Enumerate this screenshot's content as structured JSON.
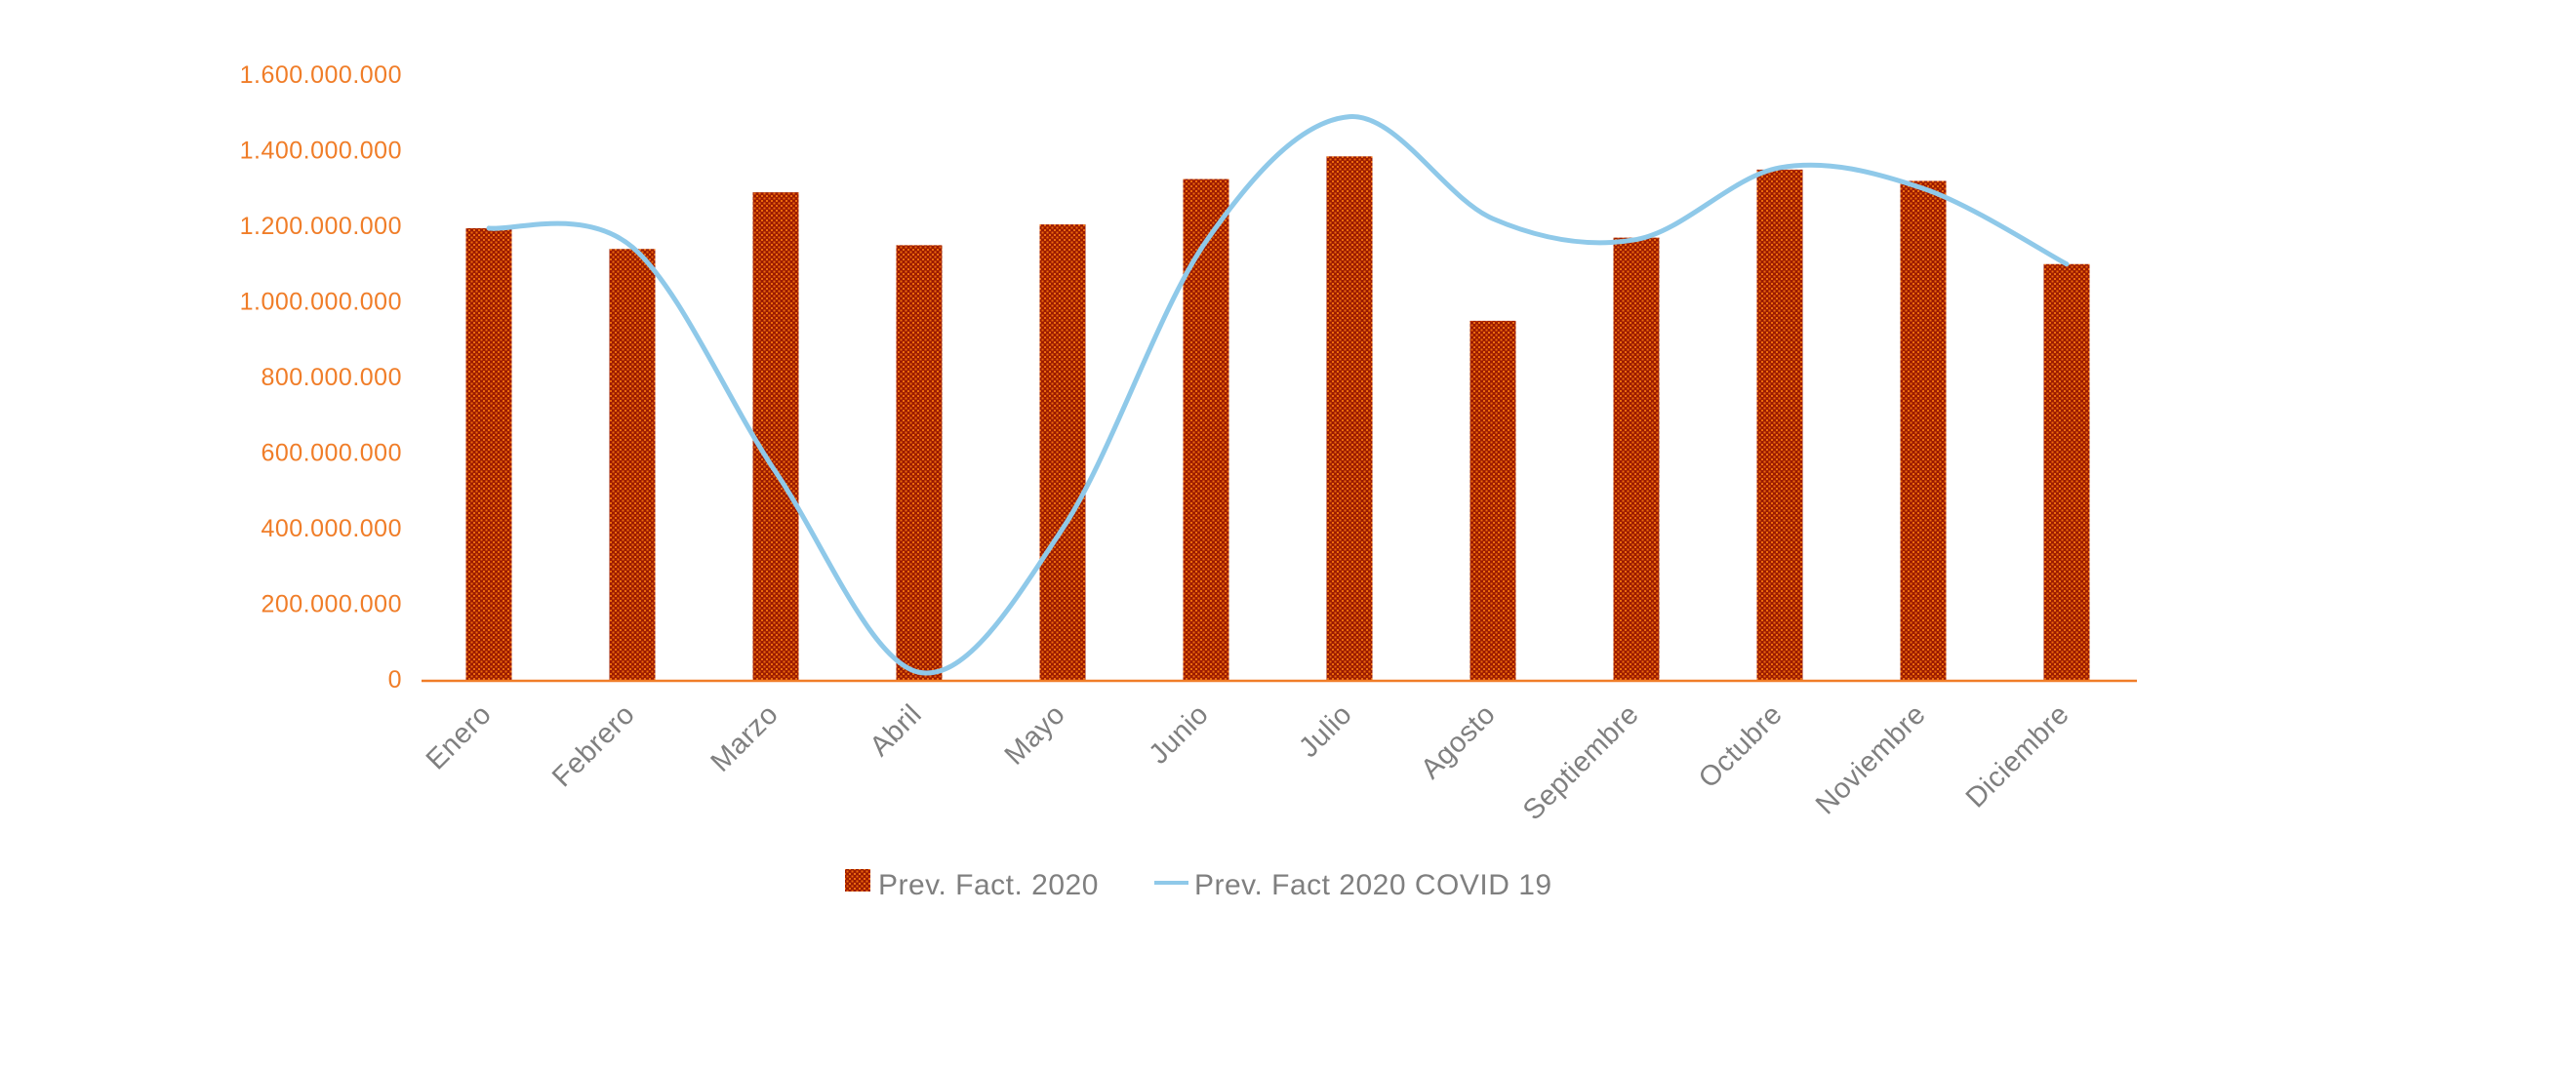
{
  "chart_data": {
    "type": "combo-bar-line",
    "title": "",
    "xlabel": "",
    "ylabel": "",
    "categories": [
      "Enero",
      "Febrero",
      "Marzo",
      "Abril",
      "Mayo",
      "Junio",
      "Julio",
      "Agosto",
      "Septiembre",
      "Octubre",
      "Noviembre",
      "Diciembre"
    ],
    "series": [
      {
        "name": "Prev. Fact. 2020",
        "type": "bar",
        "color_base": "#9C1B01",
        "color_hatch": "#EC6B0C",
        "values": [
          1195000000,
          1140000000,
          1290000000,
          1150000000,
          1205000000,
          1325000000,
          1385000000,
          950000000,
          1170000000,
          1350000000,
          1320000000,
          1100000000
        ]
      },
      {
        "name": "Prev. Fact 2020  COVID 19",
        "type": "line",
        "color": "#8FC9E9",
        "values": [
          1195000000,
          1145000000,
          550000000,
          20000000,
          400000000,
          1160000000,
          1490000000,
          1220000000,
          1165000000,
          1355000000,
          1300000000,
          1100000000
        ]
      }
    ],
    "ylim": [
      0,
      1600000000
    ],
    "ytick_step": 200000000,
    "ytick_labels": [
      "0",
      "200.000.000",
      "400.000.000",
      "600.000.000",
      "800.000.000",
      "1.000.000.000",
      "1.200.000.000",
      "1.400.000.000",
      "1.600.000.000"
    ],
    "grid": false,
    "legend_position": "bottom",
    "axis_color": "#F07D28",
    "tick_label_color": "#F07D28",
    "category_label_color": "#7F7F7F"
  },
  "legend": {
    "items": [
      {
        "label": "Prev. Fact. 2020"
      },
      {
        "label": "Prev. Fact 2020  COVID 19"
      }
    ]
  }
}
